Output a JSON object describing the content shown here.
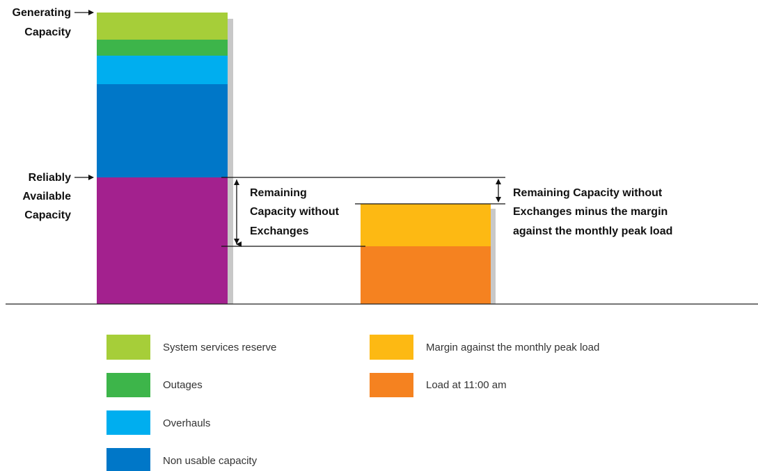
{
  "diagram": {
    "colors": {
      "system_services_reserve": "#a6ce39",
      "outages": "#3db54a",
      "overhauls": "#00aeef",
      "non_usable": "#0077c8",
      "reliably_available": "#a3218e",
      "margin": "#fdb913",
      "load": "#f58220",
      "shadow": "#c8c8c8",
      "line": "#111111"
    },
    "labels": {
      "generating_capacity": [
        "Generating",
        "Capacity"
      ],
      "reliably_available_capacity": [
        "Reliably",
        "Available",
        "Capacity"
      ],
      "remaining_capacity": [
        "Remaining",
        "Capacity without",
        "Exchanges"
      ],
      "remaining_minus_margin": [
        "Remaining Capacity without",
        "Exchanges minus the margin",
        "against the monthly peak load"
      ]
    },
    "legend": [
      {
        "key": "system_services_reserve",
        "label": "System services reserve"
      },
      {
        "key": "outages",
        "label": "Outages"
      },
      {
        "key": "overhauls",
        "label": "Overhauls"
      },
      {
        "key": "non_usable",
        "label": "Non usable capacity"
      },
      {
        "key": "margin",
        "label": "Margin against the monthly peak load"
      },
      {
        "key": "load",
        "label": "Load at 11:00 am"
      }
    ]
  }
}
